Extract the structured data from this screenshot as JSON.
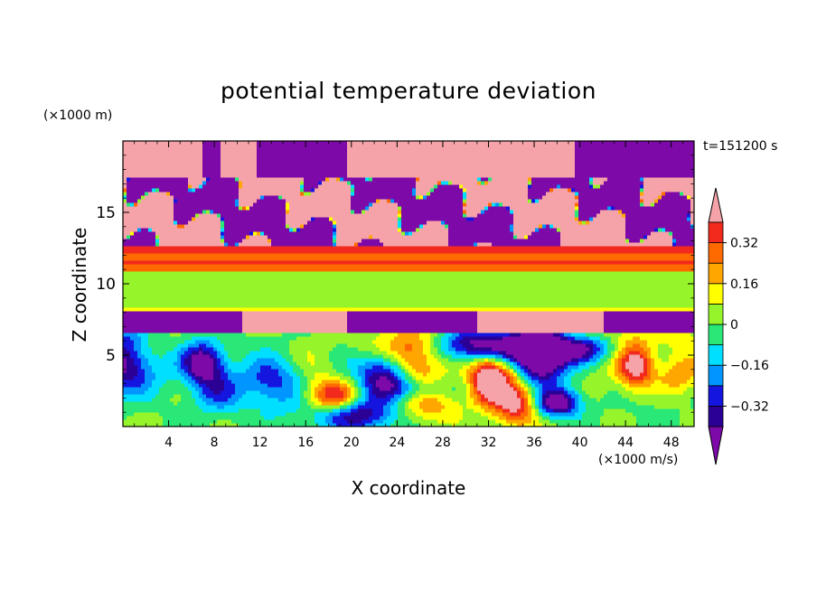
{
  "chart_data": {
    "type": "heatmap",
    "title": "potential temperature deviation",
    "xlabel": "X coordinate",
    "ylabel": "Z coordinate",
    "x_unit": "(×1000 m/s)",
    "y_unit": "(×1000 m)",
    "time_label": "t=151200 s",
    "xlim": [
      0,
      50
    ],
    "ylim": [
      0,
      20
    ],
    "x_ticks": [
      4,
      8,
      12,
      16,
      20,
      24,
      28,
      32,
      36,
      40,
      44,
      48
    ],
    "y_ticks": [
      5,
      10,
      15
    ],
    "colorbar": {
      "levels": [
        -0.4,
        -0.32,
        -0.24,
        -0.16,
        -0.08,
        0,
        0.08,
        0.16,
        0.24,
        0.32,
        0.4
      ],
      "tick_labels": [
        "0.32",
        "0.16",
        "0",
        "−0.16",
        "−0.32"
      ],
      "tick_values": [
        0.32,
        0.16,
        0,
        -0.16,
        -0.32
      ],
      "colors": [
        "#7d0aa8",
        "#2b0095",
        "#1515e0",
        "#0095ff",
        "#00dfff",
        "#29e878",
        "#96f52a",
        "#ffff00",
        "#ffa600",
        "#ff6a00",
        "#f22a1e",
        "#f5a3a8"
      ],
      "extend": "both"
    },
    "bands": [
      {
        "z_range": [
          0,
          6.6
        ],
        "description": "turbulent eddies, values -0.4 to 0.4+"
      },
      {
        "z_range": [
          6.6,
          8.0
        ],
        "value": "mixed: above 0.4 centre, below -0.4 sides"
      },
      {
        "z_range": [
          8.0,
          8.3
        ],
        "value": 0.1
      },
      {
        "z_range": [
          8.3,
          10.8
        ],
        "value": 0.04
      },
      {
        "z_range": [
          10.8,
          12.6
        ],
        "value": 0.3
      },
      {
        "z_range": [
          12.6,
          20
        ],
        "description": "patches above 0.4 and below -0.4"
      }
    ]
  },
  "colors": {
    "background": "#ffffff",
    "axis": "#000000"
  }
}
